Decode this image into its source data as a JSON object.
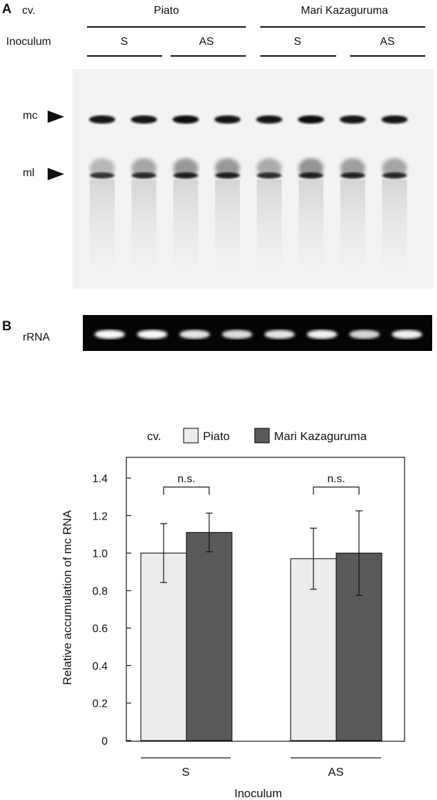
{
  "panel_a": {
    "letter": "A",
    "cv_label": "cv.",
    "cultivars": [
      "Piato",
      "Mari Kazaguruma"
    ],
    "inoculum_label": "Inoculum",
    "inocula": [
      "S",
      "AS",
      "S",
      "AS"
    ],
    "band_labels": [
      "mc",
      "ml"
    ]
  },
  "panel_b": {
    "letter": "B",
    "rrna_label": "rRNA"
  },
  "blot_lanes": [
    {
      "mc": 0.85,
      "ml": 0.6
    },
    {
      "mc": 0.85,
      "ml": 0.75
    },
    {
      "mc": 0.95,
      "ml": 0.85
    },
    {
      "mc": 0.8,
      "ml": 0.85
    },
    {
      "mc": 0.8,
      "ml": 0.7
    },
    {
      "mc": 0.95,
      "ml": 0.9
    },
    {
      "mc": 0.85,
      "ml": 0.8
    },
    {
      "mc": 0.85,
      "ml": 0.75
    }
  ],
  "gel_lanes": [
    0.95,
    0.95,
    0.8,
    0.75,
    0.8,
    0.9,
    0.7,
    0.9
  ],
  "chart_data": {
    "type": "bar",
    "categories": [
      "S",
      "AS"
    ],
    "series": [
      {
        "name": "Piato",
        "color": "#ececec",
        "values": [
          1.0,
          0.97
        ],
        "errors": [
          0.157,
          0.163
        ]
      },
      {
        "name": "Mari Kazaguruma",
        "color": "#595959",
        "values": [
          1.11,
          1.0
        ],
        "errors": [
          0.103,
          0.225
        ]
      }
    ],
    "legend_title": "cv.",
    "legend_position": "top",
    "ylabel": "Relative accumulation of mc RNA",
    "xlabel": "Inoculum",
    "ylim": [
      0,
      1.4
    ],
    "yticks": [
      0,
      0.2,
      0.4,
      0.6,
      0.8,
      1.0,
      1.2,
      1.4
    ],
    "ytick_labels": [
      "0",
      "0.2",
      "0.4",
      "0.6",
      "0.8",
      "1.0",
      "1.2",
      "1.4"
    ],
    "annotations": [
      "n.s.",
      "n.s."
    ],
    "grid": false
  }
}
